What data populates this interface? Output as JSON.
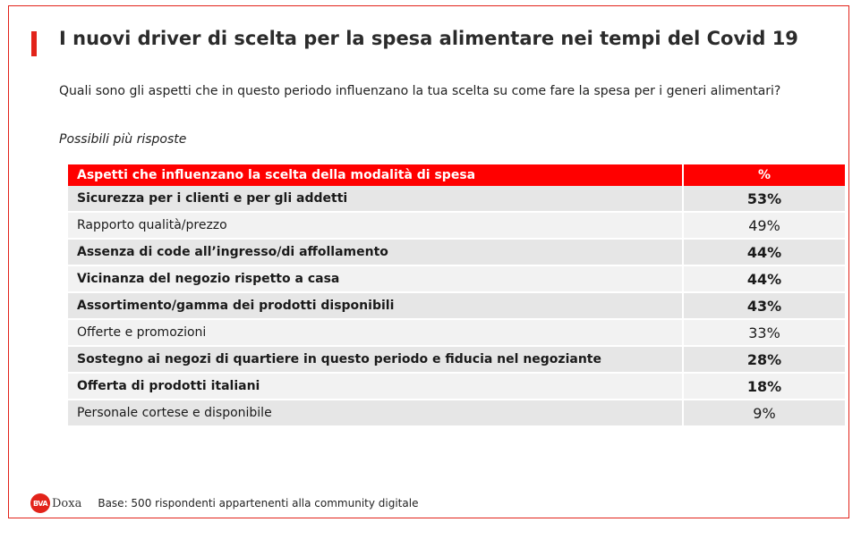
{
  "title": "I nuovi driver di scelta per la spesa alimentare nei tempi del Covid 19",
  "question": "Quali sono gli aspetti che in questo periodo influenzano la tua scelta su come fare la spesa per i generi alimentari?",
  "note": "Possibili più risposte",
  "table": {
    "header": {
      "aspect": "Aspetti che influenzano la scelta della modalità di spesa",
      "percent": "%"
    },
    "rows": [
      {
        "label": "Sicurezza per i clienti e per gli addetti",
        "value": "53%",
        "bold": true
      },
      {
        "label": "Rapporto qualità/prezzo",
        "value": "49%",
        "bold": false
      },
      {
        "label": "Assenza di code all’ingresso/di affollamento",
        "value": "44%",
        "bold": true
      },
      {
        "label": "Vicinanza del negozio rispetto a casa",
        "value": "44%",
        "bold": true
      },
      {
        "label": "Assortimento/gamma dei prodotti disponibili",
        "value": "43%",
        "bold": true
      },
      {
        "label": "Offerte e promozioni",
        "value": "33%",
        "bold": false
      },
      {
        "label": "Sostegno ai negozi di quartiere in questo periodo e fiducia nel negoziante",
        "value": "28%",
        "bold": true
      },
      {
        "label": "Offerta di prodotti italiani",
        "value": "18%",
        "bold": true
      },
      {
        "label": "Personale cortese e disponibile",
        "value": "9%",
        "bold": false
      }
    ]
  },
  "footer": {
    "logo_badge": "BVA",
    "logo_word": "Doxa",
    "base": "Base: 500 rispondenti appartenenti alla community digitale"
  },
  "colors": {
    "accent": "#e2231a",
    "header_bg": "#ff0000",
    "row_dark": "#e6e6e6",
    "row_light": "#f2f2f2"
  }
}
